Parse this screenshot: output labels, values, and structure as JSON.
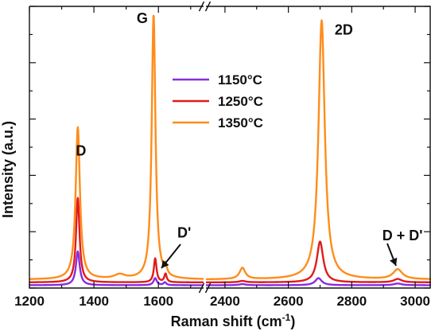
{
  "chart_data": {
    "type": "line",
    "xlabel_main": "Raman shift (cm",
    "xlabel_sup": "-1",
    "xlabel_tail": ")",
    "ylabel": "Intensity (a.u.)",
    "axis_break": true,
    "segments": [
      {
        "xlim": [
          1200,
          1740
        ],
        "xticks": [
          1200,
          1400,
          1600
        ],
        "tick_labels": [
          "1200",
          "1400",
          "1600"
        ]
      },
      {
        "xlim": [
          2340,
          3050
        ],
        "xticks": [
          2400,
          2600,
          2800,
          3000
        ],
        "tick_labels": [
          "2400",
          "2600",
          "2800",
          "3000"
        ]
      }
    ],
    "ylim": [
      0,
      1
    ],
    "grid": false,
    "legend_position": "top-center",
    "series": [
      {
        "name": "1150°C",
        "color": "#8a2be2",
        "baseline": 0.01,
        "peaks": [
          {
            "center": 1350,
            "height": 0.12,
            "width": 14
          },
          {
            "center": 1590,
            "height": 0.025,
            "width": 12
          },
          {
            "center": 1620,
            "height": 0.01,
            "width": 10
          },
          {
            "center": 2455,
            "height": 0.004,
            "width": 25
          },
          {
            "center": 2695,
            "height": 0.025,
            "width": 25
          },
          {
            "center": 2945,
            "height": 0.006,
            "width": 30
          }
        ]
      },
      {
        "name": "1250°C",
        "color": "#e01b1b",
        "baseline": 0.02,
        "peaks": [
          {
            "center": 1350,
            "height": 0.3,
            "width": 13
          },
          {
            "center": 1590,
            "height": 0.085,
            "width": 10
          },
          {
            "center": 1622,
            "height": 0.03,
            "width": 9
          },
          {
            "center": 2455,
            "height": 0.005,
            "width": 25
          },
          {
            "center": 2700,
            "height": 0.145,
            "width": 24
          },
          {
            "center": 2945,
            "height": 0.012,
            "width": 30
          }
        ]
      },
      {
        "name": "1350°C",
        "color": "#ff8c1a",
        "baseline": 0.03,
        "peaks": [
          {
            "center": 1350,
            "height": 0.54,
            "width": 16
          },
          {
            "center": 1585,
            "height": 0.94,
            "width": 14
          },
          {
            "center": 1622,
            "height": 0.03,
            "width": 10
          },
          {
            "center": 1480,
            "height": 0.015,
            "width": 40
          },
          {
            "center": 2455,
            "height": 0.04,
            "width": 22
          },
          {
            "center": 2705,
            "height": 0.92,
            "width": 24
          },
          {
            "center": 2945,
            "height": 0.035,
            "width": 35
          }
        ]
      }
    ],
    "annotations": [
      {
        "text": "D",
        "x": 1360,
        "y": 0.47
      },
      {
        "text": "G",
        "x": 1550,
        "y": 0.94
      },
      {
        "text": "D'",
        "x": 1680,
        "y": 0.18
      },
      {
        "text": "2D",
        "x": 2775,
        "y": 0.9
      },
      {
        "text": "D + D'",
        "x": 2960,
        "y": 0.17
      }
    ]
  }
}
